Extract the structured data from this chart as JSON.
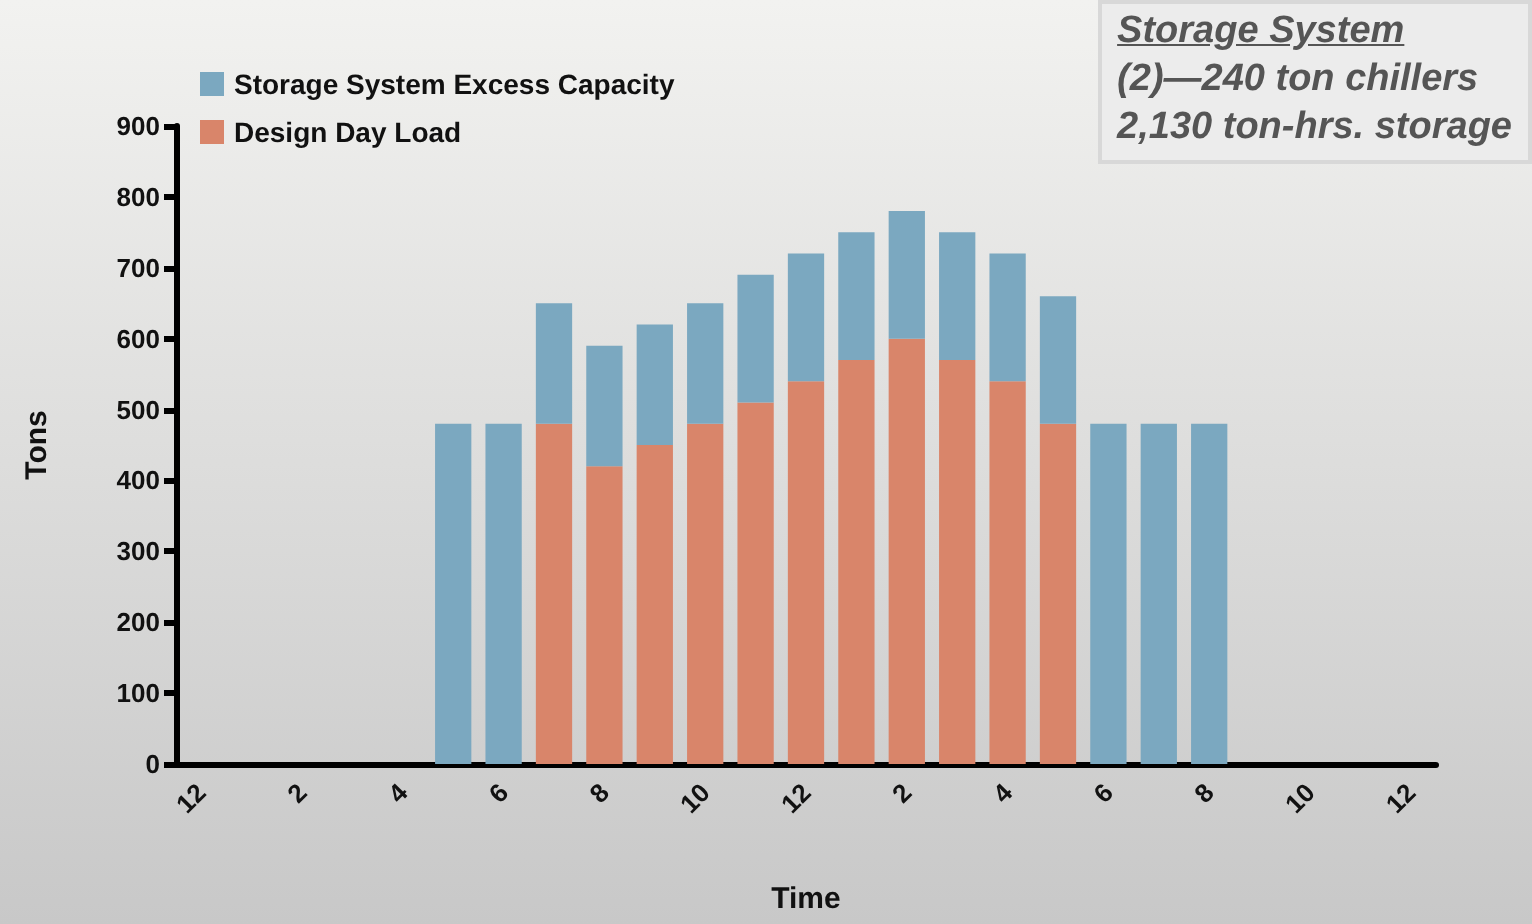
{
  "chart_data": {
    "type": "bar",
    "stacked": true,
    "xlabel": "Time",
    "ylabel": "Tons",
    "categories": [
      "12",
      null,
      "2",
      null,
      "4",
      null,
      "6",
      null,
      "8",
      null,
      "10",
      null,
      "12",
      null,
      "2",
      null,
      "4",
      null,
      "6",
      null,
      "8",
      null,
      "10",
      null,
      "12"
    ],
    "series": [
      {
        "name": "Design Day Load",
        "color": "#d9856a",
        "values": [
          null,
          null,
          null,
          null,
          null,
          null,
          null,
          480,
          420,
          450,
          480,
          510,
          540,
          570,
          600,
          570,
          540,
          480,
          null,
          null,
          null,
          null,
          null,
          null,
          null
        ]
      },
      {
        "name": "Storage System Excess Capacity",
        "color": "#7ba8c0",
        "values": [
          null,
          null,
          null,
          null,
          null,
          480,
          480,
          170,
          170,
          170,
          170,
          180,
          180,
          180,
          180,
          180,
          180,
          180,
          480,
          480,
          480,
          null,
          null,
          null,
          null
        ]
      }
    ],
    "ylim": [
      0,
      900
    ],
    "yticks": [
      0,
      100,
      200,
      300,
      400,
      500,
      600,
      700,
      800,
      900
    ],
    "grid": false,
    "legend": "top left",
    "annotations": [
      "Storage System",
      "(2)—240 ton chillers",
      "2,130 ton-hrs. storage"
    ]
  }
}
